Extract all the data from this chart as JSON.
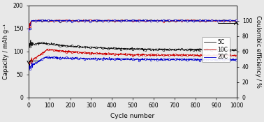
{
  "xlabel": "Cycle number",
  "ylabel_left": "Capacity / mAh g⁻¹",
  "ylabel_right": "Coulombic efficiency / %",
  "xlim": [
    0,
    1000
  ],
  "ylim_left": [
    0,
    200
  ],
  "ylim_right": [
    0,
    120
  ],
  "yticks_left": [
    0,
    50,
    100,
    150,
    200
  ],
  "yticks_right": [
    0,
    20,
    40,
    60,
    80,
    100
  ],
  "xticks": [
    0,
    100,
    200,
    300,
    400,
    500,
    600,
    700,
    800,
    900,
    1000
  ],
  "series": [
    {
      "label": "5C",
      "color": "#111111",
      "cap_init": 115,
      "cap_peak": 118,
      "cap_peak_x": 70,
      "cap_end": 103,
      "ce_init": 88,
      "ce_stable": 100
    },
    {
      "label": "10C",
      "color": "#cc0000",
      "cap_init": 75,
      "cap_peak": 104,
      "cap_peak_x": 90,
      "cap_end": 91,
      "ce_init": 88,
      "ce_stable": 100
    },
    {
      "label": "20C",
      "color": "#0000cc",
      "cap_init": 65,
      "cap_peak": 87,
      "cap_peak_x": 80,
      "cap_end": 82,
      "ce_init": 86,
      "ce_stable": 100
    }
  ],
  "background_color": "#e8e8e8",
  "n_points": 1000,
  "noise_cap": 1.0,
  "noise_ce": 0.4
}
